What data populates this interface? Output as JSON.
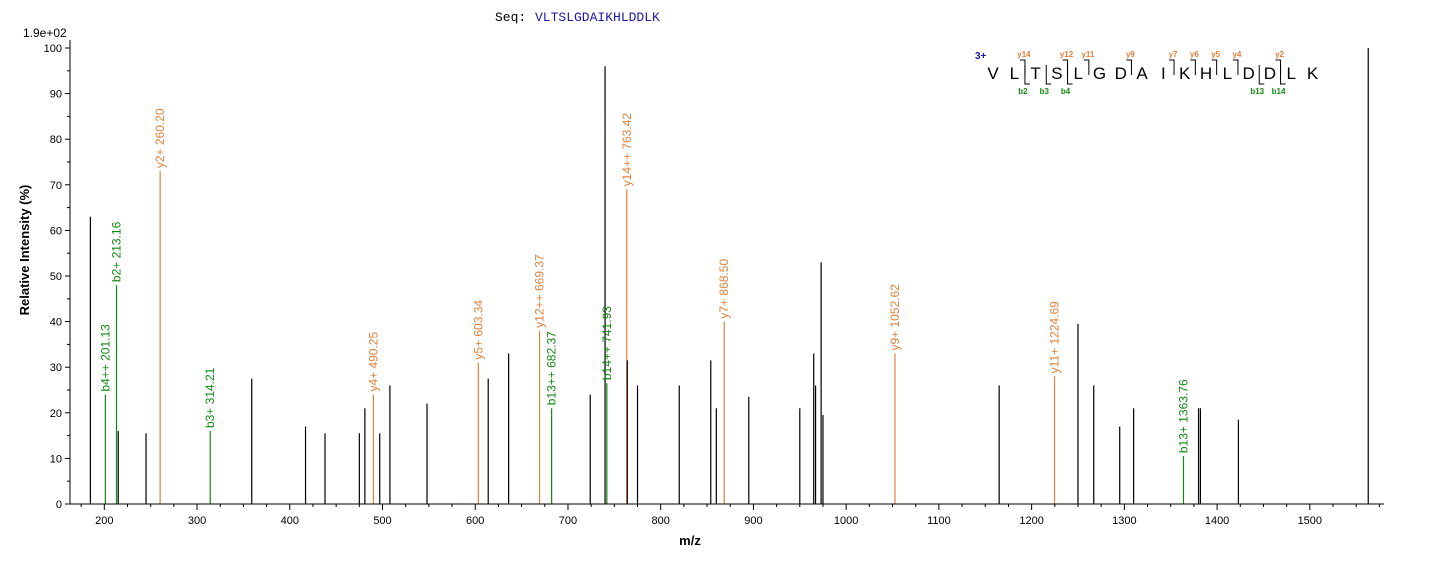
{
  "header": {
    "seq_prefix": "Seq:",
    "sequence": "VLTSLGDAIKHLDDLK",
    "max_intensity": "1.9e+02"
  },
  "colors": {
    "b_ion": "#118811",
    "y_ion": "#e0803a",
    "unassigned": "#000000",
    "charge": "#1a1aa6",
    "sequence": "#1a1aa6"
  },
  "chart_data": {
    "type": "bar",
    "xlabel": "m/z",
    "ylabel": "Relative  Intensity (%)",
    "xlim": [
      163,
      1580
    ],
    "ylim": [
      0,
      100
    ],
    "x_ticks": [
      200,
      300,
      400,
      500,
      600,
      700,
      800,
      900,
      1000,
      1100,
      1200,
      1300,
      1400,
      1500
    ],
    "y_ticks": [
      0,
      10,
      20,
      30,
      40,
      50,
      60,
      70,
      80,
      90,
      100
    ],
    "peaks": [
      {
        "mz": 185,
        "intensity": 63,
        "ion": "none"
      },
      {
        "mz": 201.13,
        "intensity": 24,
        "ion": "b",
        "label": "b4++ 201.13"
      },
      {
        "mz": 213.16,
        "intensity": 48,
        "ion": "b",
        "label": "b2+ 213.16"
      },
      {
        "mz": 215,
        "intensity": 16,
        "ion": "none"
      },
      {
        "mz": 245,
        "intensity": 15.5,
        "ion": "none"
      },
      {
        "mz": 260.2,
        "intensity": 73,
        "ion": "y",
        "label": "y2+ 260.20"
      },
      {
        "mz": 314.21,
        "intensity": 16,
        "ion": "b",
        "label": "b3+ 314.21"
      },
      {
        "mz": 359,
        "intensity": 27.5,
        "ion": "none"
      },
      {
        "mz": 417,
        "intensity": 17,
        "ion": "none"
      },
      {
        "mz": 438,
        "intensity": 15.5,
        "ion": "none"
      },
      {
        "mz": 475,
        "intensity": 15.5,
        "ion": "none"
      },
      {
        "mz": 481,
        "intensity": 21,
        "ion": "none"
      },
      {
        "mz": 490.25,
        "intensity": 24,
        "ion": "y",
        "label": "y4+ 490.25"
      },
      {
        "mz": 497,
        "intensity": 15.5,
        "ion": "none"
      },
      {
        "mz": 508,
        "intensity": 26,
        "ion": "none"
      },
      {
        "mz": 548,
        "intensity": 22,
        "ion": "none"
      },
      {
        "mz": 603.34,
        "intensity": 31,
        "ion": "y",
        "label": "y5+ 603.34"
      },
      {
        "mz": 614,
        "intensity": 27.5,
        "ion": "none"
      },
      {
        "mz": 636,
        "intensity": 33,
        "ion": "none"
      },
      {
        "mz": 669.37,
        "intensity": 38,
        "ion": "y",
        "label": "y12++ 669.37"
      },
      {
        "mz": 682.37,
        "intensity": 21,
        "ion": "b",
        "label": "b13++ 682.37"
      },
      {
        "mz": 724,
        "intensity": 24,
        "ion": "none"
      },
      {
        "mz": 740,
        "intensity": 96,
        "ion": "none"
      },
      {
        "mz": 741.93,
        "intensity": 26.5,
        "ion": "b",
        "label": "b14++ 741.93"
      },
      {
        "mz": 763.42,
        "intensity": 69,
        "ion": "y",
        "label": "y14++ 763.42"
      },
      {
        "mz": 764,
        "intensity": 31.5,
        "ion": "none"
      },
      {
        "mz": 775,
        "intensity": 26,
        "ion": "none"
      },
      {
        "mz": 820,
        "intensity": 26,
        "ion": "none"
      },
      {
        "mz": 854,
        "intensity": 31.5,
        "ion": "none"
      },
      {
        "mz": 860,
        "intensity": 21,
        "ion": "none"
      },
      {
        "mz": 868.5,
        "intensity": 40,
        "ion": "y",
        "label": "y7+ 868.50"
      },
      {
        "mz": 895,
        "intensity": 23.5,
        "ion": "none"
      },
      {
        "mz": 950,
        "intensity": 21,
        "ion": "none"
      },
      {
        "mz": 965,
        "intensity": 33,
        "ion": "none"
      },
      {
        "mz": 967,
        "intensity": 26,
        "ion": "none"
      },
      {
        "mz": 973,
        "intensity": 53,
        "ion": "none"
      },
      {
        "mz": 975,
        "intensity": 19.5,
        "ion": "none"
      },
      {
        "mz": 1052.62,
        "intensity": 33,
        "ion": "y",
        "label": "y9+ 1052.62"
      },
      {
        "mz": 1165,
        "intensity": 26,
        "ion": "none"
      },
      {
        "mz": 1224.69,
        "intensity": 28,
        "ion": "y",
        "label": "y11+ 1224.69"
      },
      {
        "mz": 1250,
        "intensity": 39.5,
        "ion": "none"
      },
      {
        "mz": 1267,
        "intensity": 26,
        "ion": "none"
      },
      {
        "mz": 1295,
        "intensity": 17,
        "ion": "none"
      },
      {
        "mz": 1310,
        "intensity": 21,
        "ion": "none"
      },
      {
        "mz": 1363.76,
        "intensity": 10.5,
        "ion": "b",
        "label": "b13+ 1363.76"
      },
      {
        "mz": 1380,
        "intensity": 21,
        "ion": "none"
      },
      {
        "mz": 1382,
        "intensity": 21,
        "ion": "none"
      },
      {
        "mz": 1423,
        "intensity": 18.5,
        "ion": "none"
      },
      {
        "mz": 1563,
        "intensity": 100,
        "ion": "none"
      }
    ]
  },
  "sequence_map": {
    "charge": "3+",
    "residues": [
      "V",
      "L",
      "T",
      "S",
      "L",
      "G",
      "D",
      "A",
      "I",
      "K",
      "H",
      "L",
      "D",
      "D",
      "L",
      "K"
    ],
    "y_ions": [
      {
        "label": "y14",
        "after": 2
      },
      {
        "label": "y12",
        "after": 4
      },
      {
        "label": "y11",
        "after": 5
      },
      {
        "label": "y9",
        "after": 7
      },
      {
        "label": "y7",
        "after": 9
      },
      {
        "label": "y6",
        "after": 10
      },
      {
        "label": "y5",
        "after": 11
      },
      {
        "label": "y4",
        "after": 12
      },
      {
        "label": "y2",
        "after": 14
      }
    ],
    "b_ions": [
      {
        "label": "b2",
        "after": 2
      },
      {
        "label": "b3",
        "after": 3
      },
      {
        "label": "b4",
        "after": 4
      },
      {
        "label": "b13",
        "after": 13
      },
      {
        "label": "b14",
        "after": 14
      }
    ]
  }
}
